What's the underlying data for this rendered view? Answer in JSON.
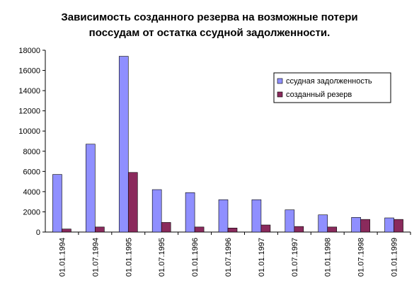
{
  "chart_data": {
    "type": "bar",
    "title": "Зависимость созданного резерва на возможные потери\nпоссудам от остатка ссудной задолженности.",
    "categories": [
      "01.01.1994",
      "01.07.1994",
      "01.01.1995",
      "01.07.1995",
      "01.01.1996",
      "01.07.1996",
      "01.01.1997",
      "01.07.1997",
      "01.01.1998",
      "01.07.1998",
      "01.01.1999"
    ],
    "series": [
      {
        "name": "ссудная задолженность",
        "color": "#8F8FFF",
        "values": [
          5700,
          8700,
          17400,
          4200,
          3900,
          3200,
          3200,
          2200,
          1700,
          1450,
          1400
        ]
      },
      {
        "name": "созданный резерв",
        "color": "#8A2A5C",
        "values": [
          300,
          500,
          5900,
          950,
          500,
          400,
          700,
          550,
          500,
          1250,
          1250
        ]
      }
    ],
    "ylim": [
      0,
      18000
    ],
    "yticks": [
      0,
      2000,
      4000,
      6000,
      8000,
      10000,
      12000,
      14000,
      16000,
      18000
    ],
    "grid": false,
    "legend_position": "top-right"
  }
}
